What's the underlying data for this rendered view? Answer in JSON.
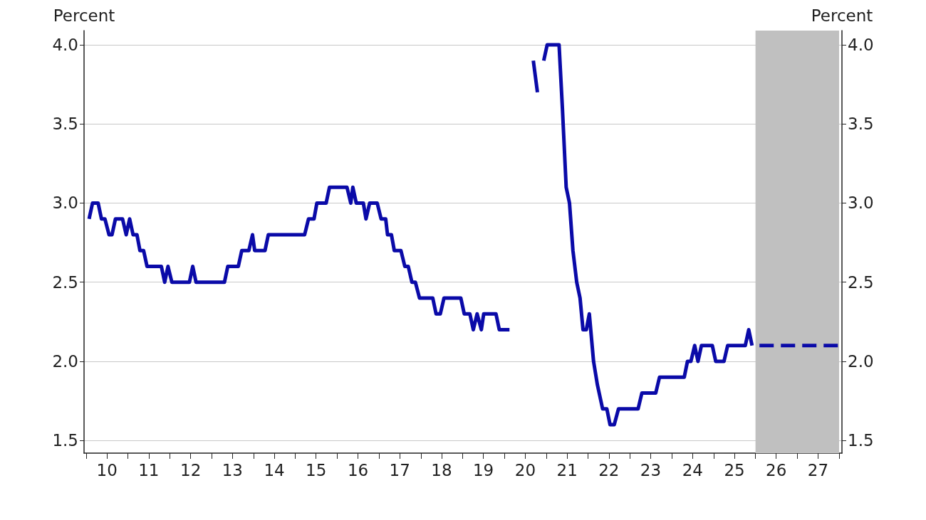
{
  "chart_data": {
    "type": "line",
    "ylabel": "Percent",
    "y2label": "Percent",
    "xlim": [
      "2009-12-13",
      "2028-01-26"
    ],
    "ylim": [
      1.42,
      4.09
    ],
    "y2lim": [
      1.42,
      4.09
    ],
    "xticks": [
      {
        "value": "2010-01-01",
        "label": null
      },
      {
        "value": "2011-01-01",
        "label": null
      },
      {
        "value": "2012-01-01",
        "label": null
      },
      {
        "value": "2013-01-01",
        "label": null
      },
      {
        "value": "2014-01-01",
        "label": null
      },
      {
        "value": "2015-01-01",
        "label": null
      },
      {
        "value": "2016-01-01",
        "label": null
      },
      {
        "value": "2017-01-01",
        "label": null
      },
      {
        "value": "2018-01-01",
        "label": null
      },
      {
        "value": "2019-01-01",
        "label": null
      },
      {
        "value": "2020-01-01",
        "label": null
      },
      {
        "value": "2021-01-01",
        "label": null
      },
      {
        "value": "2022-01-01",
        "label": null
      },
      {
        "value": "2023-01-01",
        "label": null
      },
      {
        "value": "2024-01-01",
        "label": null
      },
      {
        "value": "2025-01-01",
        "label": null
      },
      {
        "value": "2026-01-01",
        "label": null
      },
      {
        "value": "2027-01-01",
        "label": null
      },
      {
        "value": "2028-01-01",
        "label": null
      },
      {
        "value": "2010-07-01",
        "label": "10"
      },
      {
        "value": "2011-07-01",
        "label": "11"
      },
      {
        "value": "2012-07-01",
        "label": "12"
      },
      {
        "value": "2013-07-01",
        "label": "13"
      },
      {
        "value": "2014-07-01",
        "label": "14"
      },
      {
        "value": "2015-07-01",
        "label": "15"
      },
      {
        "value": "2016-07-01",
        "label": "16"
      },
      {
        "value": "2017-07-01",
        "label": "17"
      },
      {
        "value": "2018-07-01",
        "label": "18"
      },
      {
        "value": "2019-07-01",
        "label": "19"
      },
      {
        "value": "2020-07-01",
        "label": "20"
      },
      {
        "value": "2021-07-01",
        "label": "21"
      },
      {
        "value": "2022-07-01",
        "label": "22"
      },
      {
        "value": "2023-07-01",
        "label": "23"
      },
      {
        "value": "2024-07-01",
        "label": "24"
      },
      {
        "value": "2025-07-01",
        "label": "25"
      },
      {
        "value": "2026-07-01",
        "label": "26"
      },
      {
        "value": "2027-07-01",
        "label": "27"
      }
    ],
    "yticks": [
      {
        "value": 1.5,
        "label": "1.5"
      },
      {
        "value": 2,
        "label": "2.0"
      },
      {
        "value": 2.5,
        "label": "2.5"
      },
      {
        "value": 3,
        "label": "3.0"
      },
      {
        "value": 3.5,
        "label": "3.5"
      },
      {
        "value": 4,
        "label": "4.0"
      }
    ],
    "y2ticks": [
      {
        "value": 1.5,
        "label": "1.5"
      },
      {
        "value": 2,
        "label": "2.0"
      },
      {
        "value": 2.5,
        "label": "2.5"
      },
      {
        "value": 3,
        "label": "3.0"
      },
      {
        "value": 3.5,
        "label": "3.5"
      },
      {
        "value": 4,
        "label": "4.0"
      }
    ],
    "grid": "y",
    "marker": "none",
    "bands": [
      {
        "axis": "x",
        "from": "2026-01-01",
        "to": "2028-01-01",
        "color": "#c0c0c0"
      }
    ],
    "series": [
      {
        "color": "#0a0aa8",
        "line_style": "solid",
        "x": [
          "2010-01-26",
          "2010-02-25",
          "2010-04-15",
          "2010-05-14",
          "2010-06-13",
          "2010-07-19",
          "2010-08-14",
          "2010-09-13",
          "2010-11-14",
          "2010-12-16",
          "2011-01-15",
          "2011-02-14",
          "2011-03-20",
          "2011-04-15",
          "2011-05-17",
          "2011-06-16",
          "2011-10-19",
          "2011-11-17",
          "2011-12-16",
          "2012-01-19",
          "2012-06-20",
          "2012-07-19",
          "2012-08-17",
          "2013-04-22",
          "2013-05-21",
          "2013-08-21",
          "2013-09-20",
          "2013-11-21",
          "2013-12-23",
          "2014-01-11",
          "2014-04-11",
          "2014-05-10",
          "2015-03-23",
          "2015-04-26",
          "2015-06-13",
          "2015-07-08",
          "2015-09-27",
          "2015-10-26",
          "2016-03-27",
          "2016-04-29",
          "2016-05-17",
          "2016-06-16",
          "2016-08-17",
          "2016-09-09",
          "2016-10-11",
          "2016-12-16",
          "2017-01-19",
          "2017-02-28",
          "2017-03-16",
          "2017-04-19",
          "2017-05-14",
          "2017-07-11",
          "2017-08-14",
          "2017-09-13",
          "2017-10-15",
          "2017-11-14",
          "2017-12-20",
          "2018-04-15",
          "2018-05-14",
          "2018-06-20",
          "2018-07-22",
          "2018-12-16",
          "2019-01-15",
          "2019-03-05",
          "2019-04-04",
          "2019-05-07",
          "2019-06-13",
          "2019-07-04",
          "2019-10-19",
          "2019-11-17",
          "2020-02-14",
          "2020-02-25",
          "2020-05-25",
          "2020-08-07",
          "2020-09-09",
          "2020-10-15",
          "2020-11-14",
          "2020-12-09",
          "2021-01-08",
          "2021-04-22",
          "2021-05-21",
          "2021-06-23",
          "2021-07-22",
          "2021-08-21",
          "2021-09-23",
          "2021-10-22",
          "2021-11-17",
          "2021-12-16",
          "2022-01-11",
          "2022-02-17",
          "2022-03-23",
          "2022-05-07",
          "2022-06-13",
          "2022-07-11",
          "2022-08-17",
          "2022-09-23",
          "2023-03-13",
          "2023-04-15",
          "2023-08-14",
          "2023-09-16",
          "2024-04-19",
          "2024-05-17",
          "2024-06-16",
          "2024-07-19",
          "2024-08-17",
          "2024-09-16",
          "2024-12-20",
          "2025-01-19",
          "2025-04-01",
          "2025-05-03",
          "2025-10-04",
          "2025-11-03",
          "2025-12-02"
        ],
        "values": [
          2.9,
          3.0,
          3.0,
          2.9,
          2.9,
          2.8,
          2.8,
          2.9,
          2.9,
          2.8,
          2.9,
          2.8,
          2.8,
          2.7,
          2.7,
          2.6,
          2.6,
          2.5,
          2.6,
          2.5,
          2.5,
          2.6,
          2.5,
          2.5,
          2.6,
          2.6,
          2.7,
          2.7,
          2.8,
          2.7,
          2.7,
          2.8,
          2.8,
          2.9,
          2.9,
          3.0,
          3.0,
          3.1,
          3.1,
          3.0,
          3.1,
          3.0,
          3.0,
          2.9,
          3.0,
          3.0,
          2.9,
          2.9,
          2.8,
          2.8,
          2.7,
          2.7,
          2.6,
          2.6,
          2.5,
          2.5,
          2.4,
          2.4,
          2.3,
          2.3,
          2.4,
          2.4,
          2.3,
          2.3,
          2.2,
          2.3,
          2.2,
          2.3,
          2.3,
          2.2,
          2.2,
          null,
          null,
          null,
          3.9,
          3.7,
          null,
          3.9,
          4.0,
          4.0,
          3.6,
          3.1,
          3.0,
          2.7,
          2.5,
          2.4,
          2.2,
          2.2,
          2.3,
          2.0,
          1.85,
          1.7,
          1.7,
          1.6,
          1.6,
          1.7,
          1.7,
          1.8,
          1.8,
          1.9,
          1.9,
          2.0,
          2.0,
          2.1,
          2.0,
          2.1,
          2.1,
          2.0,
          2.0,
          2.1,
          2.1,
          2.2,
          2.1
        ]
      },
      {
        "color": "#0a0aa8",
        "line_style": "dashed",
        "x": [
          "2026-02-05",
          "2027-12-31"
        ],
        "values": [
          2.1,
          2.1
        ]
      }
    ]
  }
}
